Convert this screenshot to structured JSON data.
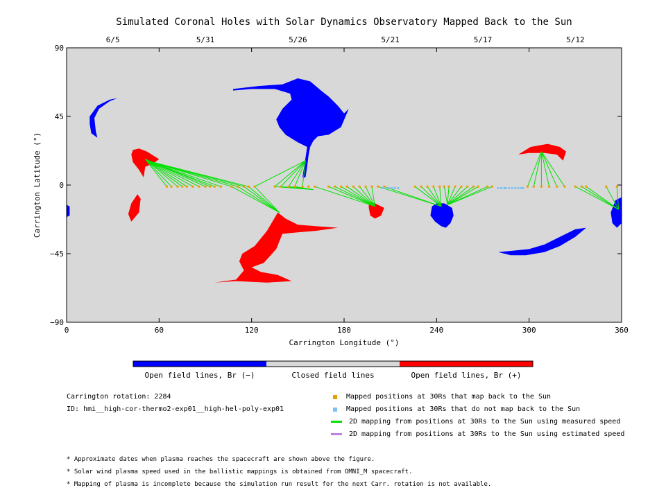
{
  "chart_data": {
    "type": "scatter",
    "title": "Simulated Coronal Holes with Solar Dynamics Observatory Mapped Back to the Sun",
    "xlabel": "Carrington Longitude (°)",
    "ylabel": "Carrington Latitude (°)",
    "xlim": [
      0,
      360
    ],
    "ylim": [
      -90,
      90
    ],
    "x_ticks": [
      "0",
      "60",
      "120",
      "180",
      "240",
      "300",
      "360"
    ],
    "y_ticks": [
      "90",
      "45",
      "0",
      "−45",
      "−90"
    ],
    "top_axis": {
      "label_note": "approximate arrival dates",
      "ticks": [
        {
          "label": "6/5",
          "lon": 30
        },
        {
          "label": "5/31",
          "lon": 90
        },
        {
          "label": "5/26",
          "lon": 150
        },
        {
          "label": "5/21",
          "lon": 210
        },
        {
          "label": "5/17",
          "lon": 270
        },
        {
          "label": "5/12",
          "lon": 330
        }
      ]
    },
    "grid": false,
    "background_color": "#d8d8d8",
    "colors": {
      "open_negative": "#0000ff",
      "open_positive": "#ff0000",
      "closed": "#d8d8d8",
      "mapped": "#e8a000",
      "not_mapped": "#80c0f0",
      "measured": "#00e000",
      "estimated": "#c080e0"
    },
    "coronal_holes": [
      {
        "polarity": "negative",
        "points": [
          [
            15,
            45
          ],
          [
            20,
            52
          ],
          [
            28,
            56
          ],
          [
            33,
            57
          ],
          [
            28,
            55
          ],
          [
            21,
            50
          ],
          [
            18,
            44
          ],
          [
            19,
            35
          ],
          [
            20,
            31
          ],
          [
            16,
            34
          ],
          [
            15,
            40
          ]
        ]
      },
      {
        "polarity": "negative",
        "points": [
          [
            108,
            63
          ],
          [
            125,
            65
          ],
          [
            140,
            66
          ],
          [
            150,
            70
          ],
          [
            158,
            68
          ],
          [
            165,
            62
          ],
          [
            170,
            58
          ],
          [
            176,
            52
          ],
          [
            180,
            47
          ],
          [
            183,
            50
          ],
          [
            178,
            38
          ],
          [
            170,
            33
          ],
          [
            163,
            32
          ],
          [
            160,
            29
          ],
          [
            158,
            25
          ],
          [
            157,
            20
          ],
          [
            156,
            12
          ],
          [
            155,
            5
          ],
          [
            153,
            5
          ],
          [
            155,
            18
          ],
          [
            156,
            25
          ],
          [
            150,
            28
          ],
          [
            142,
            33
          ],
          [
            138,
            38
          ],
          [
            136,
            43
          ],
          [
            140,
            50
          ],
          [
            146,
            56
          ],
          [
            145,
            60
          ],
          [
            135,
            63
          ],
          [
            120,
            63
          ],
          [
            108,
            62
          ]
        ]
      },
      {
        "polarity": "negative",
        "points": [
          [
            237,
            -14
          ],
          [
            240,
            -12
          ],
          [
            245,
            -12
          ],
          [
            250,
            -15
          ],
          [
            251,
            -20
          ],
          [
            249,
            -25
          ],
          [
            246,
            -28
          ],
          [
            243,
            -27
          ],
          [
            239,
            -24
          ],
          [
            236,
            -20
          ]
        ]
      },
      {
        "polarity": "negative",
        "points": [
          [
            280,
            -44
          ],
          [
            290,
            -43
          ],
          [
            300,
            -42
          ],
          [
            310,
            -39
          ],
          [
            320,
            -34
          ],
          [
            330,
            -29
          ],
          [
            337,
            -28
          ],
          [
            330,
            -34
          ],
          [
            320,
            -40
          ],
          [
            310,
            -44
          ],
          [
            298,
            -46
          ],
          [
            288,
            -46
          ]
        ]
      },
      {
        "polarity": "negative",
        "points": [
          [
            356,
            -10
          ],
          [
            360,
            -8
          ],
          [
            360,
            -25
          ],
          [
            357,
            -28
          ],
          [
            354,
            -25
          ],
          [
            353,
            -18
          ]
        ]
      },
      {
        "polarity": "negative",
        "points": [
          [
            0,
            -13
          ],
          [
            2,
            -14
          ],
          [
            2,
            -20
          ],
          [
            0,
            -21
          ]
        ]
      },
      {
        "polarity": "positive",
        "points": [
          [
            43,
            23
          ],
          [
            47,
            24
          ],
          [
            52,
            22
          ],
          [
            60,
            17
          ],
          [
            56,
            14
          ],
          [
            51,
            12
          ],
          [
            50,
            5
          ],
          [
            47,
            10
          ],
          [
            43,
            15
          ],
          [
            42,
            20
          ]
        ]
      },
      {
        "polarity": "positive",
        "points": [
          [
            40,
            -19
          ],
          [
            42,
            -12
          ],
          [
            46,
            -6
          ],
          [
            48,
            -9
          ],
          [
            47,
            -18
          ],
          [
            42,
            -24
          ]
        ]
      },
      {
        "polarity": "positive",
        "points": [
          [
            137,
            -18
          ],
          [
            142,
            -22
          ],
          [
            150,
            -26
          ],
          [
            162,
            -27
          ],
          [
            176,
            -28
          ],
          [
            162,
            -30
          ],
          [
            150,
            -31
          ],
          [
            140,
            -32
          ],
          [
            136,
            -42
          ],
          [
            128,
            -51
          ],
          [
            120,
            -54
          ],
          [
            126,
            -57
          ],
          [
            137,
            -59
          ],
          [
            146,
            -63
          ],
          [
            130,
            -64
          ],
          [
            110,
            -63
          ],
          [
            96,
            -64
          ],
          [
            110,
            -62
          ],
          [
            115,
            -56
          ],
          [
            112,
            -50
          ],
          [
            114,
            -45
          ],
          [
            122,
            -40
          ],
          [
            130,
            -30
          ]
        ]
      },
      {
        "polarity": "positive",
        "points": [
          [
            196,
            -11
          ],
          [
            200,
            -12
          ],
          [
            206,
            -15
          ],
          [
            204,
            -20
          ],
          [
            200,
            -22
          ],
          [
            197,
            -20
          ],
          [
            196,
            -15
          ]
        ]
      },
      {
        "polarity": "positive",
        "points": [
          [
            293,
            20
          ],
          [
            301,
            25
          ],
          [
            312,
            27
          ],
          [
            320,
            25
          ],
          [
            324,
            22
          ],
          [
            322,
            16
          ],
          [
            318,
            20
          ],
          [
            310,
            21
          ],
          [
            300,
            21
          ]
        ]
      }
    ],
    "mapped_points": {
      "lat": -1,
      "lons": [
        65,
        68,
        72,
        75,
        78,
        82,
        86,
        90,
        93,
        96,
        100,
        107,
        111,
        115,
        118,
        122,
        135,
        139,
        144,
        148,
        153,
        157,
        161,
        170,
        174,
        178,
        182,
        186,
        190,
        194,
        198,
        202,
        206,
        226,
        230,
        234,
        238,
        242,
        245,
        248,
        252,
        256,
        260,
        264,
        267,
        273,
        276,
        299,
        303,
        308,
        313,
        318,
        323,
        330,
        334,
        337,
        350,
        357
      ]
    },
    "unmapped_points": {
      "lat": -2,
      "lons": [
        205,
        207,
        209,
        211,
        213,
        215,
        280,
        282,
        284,
        285,
        287,
        289,
        291,
        293,
        295,
        296
      ]
    },
    "green_lines": [
      {
        "from": [
          51,
          17
        ],
        "to_lons": [
          65,
          68,
          72,
          75,
          78,
          82,
          86,
          90,
          93
        ]
      },
      {
        "from": [
          52,
          16
        ],
        "to_lons": [
          96,
          100,
          107,
          111,
          115,
          118
        ]
      },
      {
        "from": [
          138,
          -18
        ],
        "to_lons": [
          107,
          111,
          115,
          118,
          122
        ]
      },
      {
        "from": [
          155,
          16
        ],
        "to_lons": [
          122,
          135,
          139,
          144,
          148,
          153
        ]
      },
      {
        "from": [
          160,
          -3
        ],
        "to_lons": [
          135,
          139,
          144,
          148
        ]
      },
      {
        "from": [
          200,
          -14
        ],
        "to_lons": [
          161,
          170,
          174,
          178,
          182,
          186,
          190,
          194,
          198
        ]
      },
      {
        "from": [
          243,
          -14
        ],
        "to_lons": [
          202,
          206,
          226,
          230,
          234,
          238,
          242
        ]
      },
      {
        "from": [
          247,
          -13
        ],
        "to_lons": [
          245,
          248,
          252,
          256,
          260,
          264,
          267,
          273,
          276
        ]
      },
      {
        "from": [
          308,
          22
        ],
        "to_lons": [
          299,
          303,
          308,
          313,
          318,
          323
        ]
      },
      {
        "from": [
          358,
          -16
        ],
        "to_lons": [
          330,
          334,
          337,
          350,
          357
        ]
      },
      {
        "from": [
          0,
          -13
        ],
        "to_lons": [
          -3
        ]
      }
    ]
  },
  "colorbar": {
    "labels": [
      "Open field lines, Br (−)",
      "Closed field lines",
      "Open field lines, Br (+)"
    ]
  },
  "info": {
    "rotation": "Carrington rotation: 2284",
    "id": "ID: hmi__high-cor-thermo2-exp01__high-hel-poly-exp01"
  },
  "legend": [
    {
      "label": "Mapped positions at 30Rs that map back to the Sun",
      "kind": "square",
      "color": "#e8a000"
    },
    {
      "label": "Mapped positions at 30Rs that do not map back to the Sun",
      "kind": "square",
      "color": "#80c0f0"
    },
    {
      "label": "2D mapping from positions at 30Rs to the Sun using measured speed",
      "kind": "line",
      "color": "#00e000"
    },
    {
      "label": "2D mapping from positions at 30Rs to the Sun using estimated speed",
      "kind": "line",
      "color": "#c080e0"
    }
  ],
  "footnotes": [
    "* Approximate dates when plasma reaches the spacecraft are shown above the figure.",
    "* Solar wind plasma speed used in the ballistic mappings is obtained from OMNI_M spacecraft.",
    "* Mapping of plasma is incomplete because the simulation run result for the next Carr. rotation is not available."
  ]
}
